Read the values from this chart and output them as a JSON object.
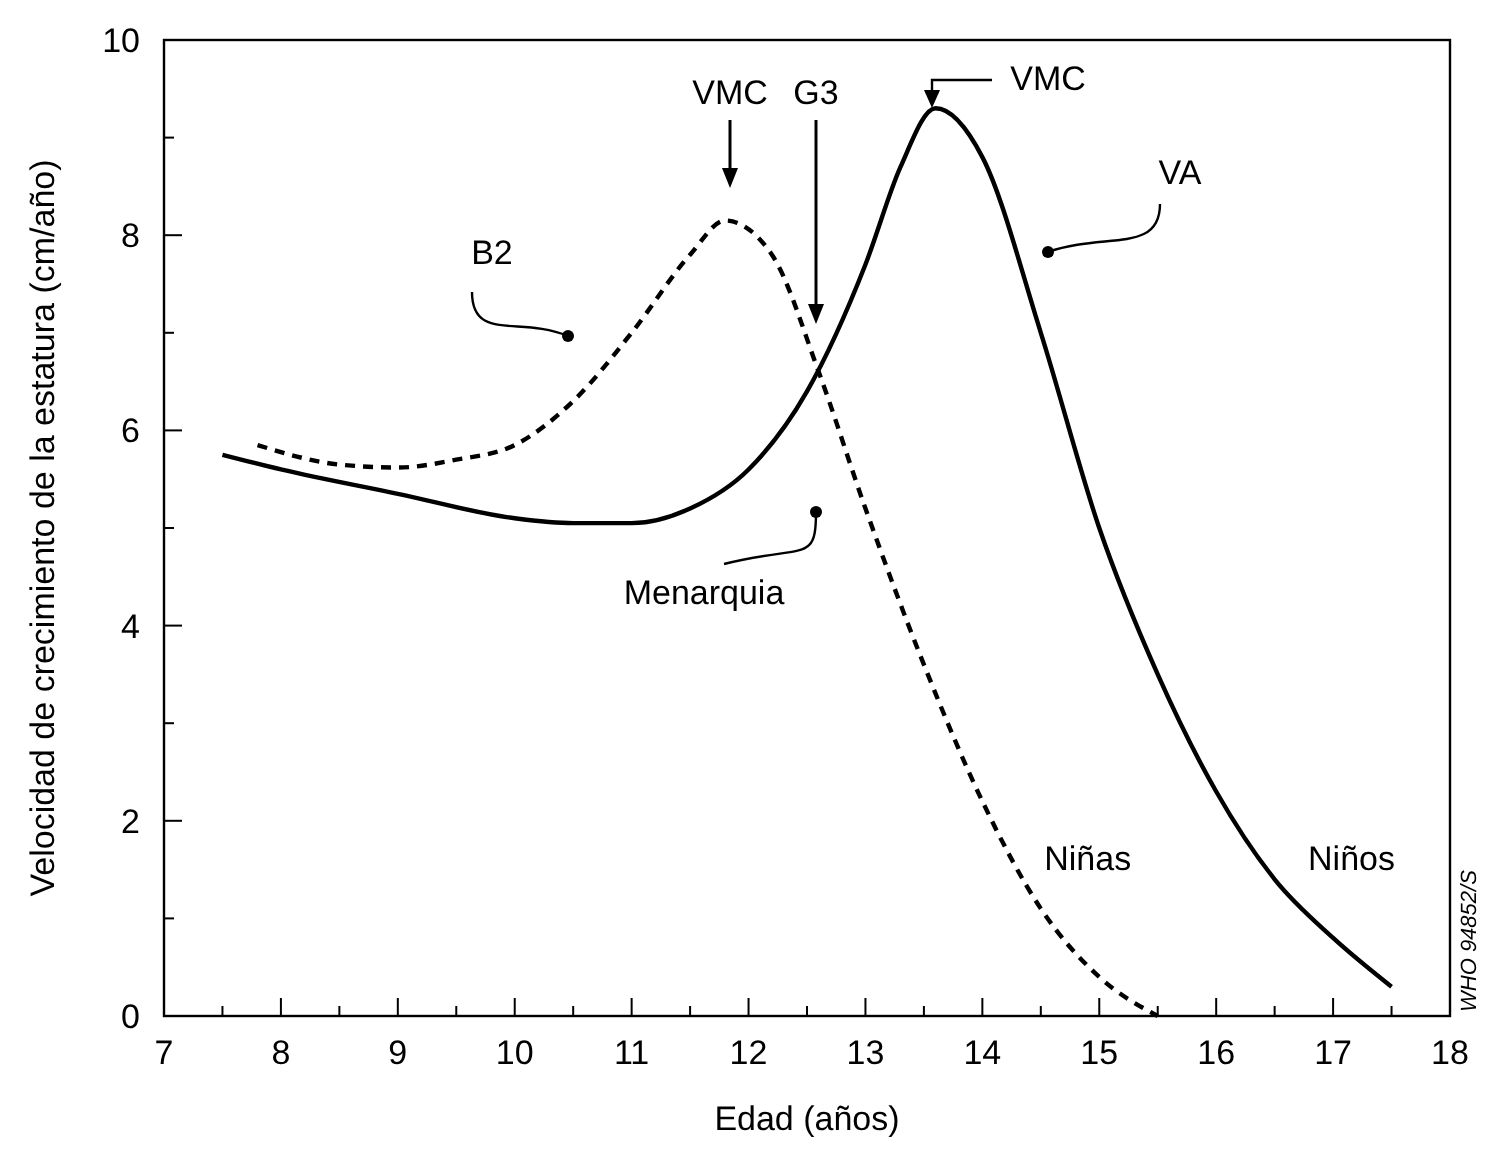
{
  "chart_data": {
    "type": "line",
    "xlabel": "Edad (años)",
    "ylabel": "Velocidad de crecimiento de la estatura (cm/año)",
    "xlim": [
      7,
      18
    ],
    "ylim": [
      0,
      10
    ],
    "xticks": [
      7,
      {
        "value": 7.5,
        "label": null
      },
      8,
      {
        "value": 8.5,
        "label": null
      },
      9,
      {
        "value": 9.5,
        "label": null
      },
      10,
      {
        "value": 10.5,
        "label": null
      },
      11,
      {
        "value": 11.5,
        "label": null
      },
      12,
      {
        "value": 12.5,
        "label": null
      },
      13,
      {
        "value": 13.5,
        "label": null
      },
      14,
      {
        "value": 14.5,
        "label": null
      },
      15,
      {
        "value": 15.5,
        "label": null
      },
      16,
      {
        "value": 16.5,
        "label": null
      },
      17,
      {
        "value": 17.5,
        "label": null
      },
      18
    ],
    "yticks": [
      0,
      {
        "value": 1,
        "label": null
      },
      2,
      {
        "value": 3,
        "label": null
      },
      4,
      {
        "value": 5,
        "label": null
      },
      6,
      {
        "value": 7,
        "label": null
      },
      8,
      {
        "value": 9,
        "label": null
      },
      10
    ],
    "grid": false,
    "legend": false,
    "series": [
      {
        "name": "Niñas",
        "color": "#000000",
        "line_style": "dashed",
        "x": [
          7.8,
          8.5,
          9,
          9.5,
          10,
          10.5,
          11,
          11.5,
          11.8,
          12.2,
          12.6,
          13,
          13.5,
          14,
          14.5,
          15,
          15.5
        ],
        "values": [
          5.85,
          5.65,
          5.62,
          5.7,
          5.85,
          6.3,
          7.0,
          7.8,
          8.15,
          7.8,
          6.6,
          5.2,
          3.6,
          2.2,
          1.1,
          0.4,
          0.0
        ]
      },
      {
        "name": "Niños",
        "color": "#000000",
        "line_style": "solid",
        "x": [
          7.5,
          8,
          9,
          10,
          10.5,
          11,
          11.5,
          12,
          12.5,
          13,
          13.3,
          13.6,
          14,
          14.5,
          15,
          15.5,
          16,
          16.5,
          17,
          17.5
        ],
        "values": [
          5.75,
          5.6,
          5.35,
          5.1,
          5.05,
          5.05,
          5.2,
          5.6,
          6.4,
          7.7,
          8.7,
          9.3,
          8.8,
          7.0,
          5.0,
          3.5,
          2.3,
          1.4,
          0.8,
          0.3
        ]
      }
    ],
    "annotations": [
      "VMC",
      "G3",
      "VMC",
      "VA",
      "B2",
      "Menarquia",
      "WHO 94852/S"
    ]
  }
}
